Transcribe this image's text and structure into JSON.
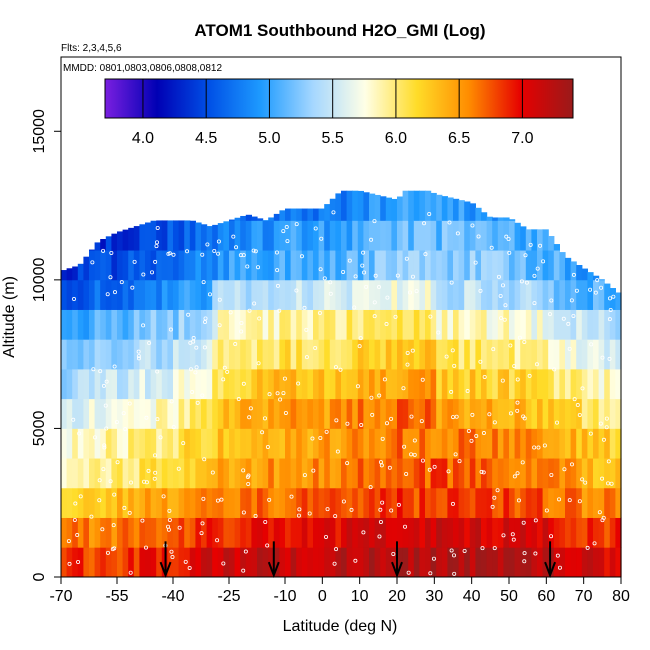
{
  "chart_data": {
    "type": "heatmap",
    "title": "ATOM1 Southbound H2O_GMI (Log)",
    "flights_note": "Flts: 2,3,4,5,6",
    "dates_note": "MMDD: 0801,0803,0806,0808,0812",
    "xlabel": "Latitude (deg N)",
    "ylabel": "Altitude (m)",
    "xlim": [
      -70,
      80
    ],
    "ylim": [
      0,
      17500
    ],
    "x_ticks": [
      -70,
      -55,
      -40,
      -25,
      -10,
      0,
      10,
      20,
      30,
      40,
      50,
      60,
      70,
      80
    ],
    "y_ticks": [
      0,
      5000,
      10000,
      15000
    ],
    "colorbar": {
      "range": [
        3.7,
        7.4
      ],
      "ticks": [
        4.0,
        4.5,
        5.0,
        5.5,
        6.0,
        6.5,
        7.0
      ],
      "tick_labels": [
        "4.0",
        "4.5",
        "5.0",
        "5.5",
        "6.0",
        "6.5",
        "7.0"
      ],
      "colors": [
        "#7a1fe0",
        "#0000b4",
        "#0050e6",
        "#1e9bff",
        "#a5d7ff",
        "#ffffe6",
        "#ffdc28",
        "#ff8c00",
        "#e60000",
        "#9a1a1a"
      ]
    },
    "altitude_bins": [
      500,
      1500,
      2500,
      3500,
      4500,
      5500,
      6500,
      7500,
      8500,
      9500,
      10500,
      11500,
      12500
    ],
    "altitude_profile": [
      7.1,
      6.9,
      6.6,
      6.4,
      6.3,
      6.1,
      5.9,
      5.7,
      5.5,
      5.1,
      4.9,
      4.8,
      4.6
    ],
    "latitude_modulation": {
      "lat": [
        -70,
        -55,
        -40,
        -25,
        -10,
        0,
        10,
        20,
        30,
        40,
        50,
        60,
        70,
        80
      ],
      "offset": [
        -0.55,
        -0.4,
        -0.25,
        0.05,
        0.15,
        0.15,
        0.25,
        0.35,
        0.35,
        0.35,
        0.3,
        0.2,
        0.0,
        -0.1
      ]
    },
    "upper_boundary_m": {
      "lat": [
        -70,
        -65,
        -60,
        -55,
        -45,
        -40,
        -35,
        -30,
        -20,
        -15,
        -10,
        -5,
        0,
        5,
        10,
        20,
        25,
        30,
        40,
        45,
        50,
        55,
        60,
        65,
        70,
        75,
        80
      ],
      "alt": [
        10300,
        10500,
        11300,
        11600,
        12000,
        12000,
        12000,
        11800,
        12200,
        12000,
        12400,
        12400,
        12400,
        13000,
        13000,
        12700,
        13400,
        12900,
        12600,
        12100,
        12100,
        11700,
        11700,
        10800,
        10400,
        10000,
        9500
      ]
    },
    "sample_arrow_latitudes": [
      -42,
      -13,
      20,
      61
    ]
  }
}
